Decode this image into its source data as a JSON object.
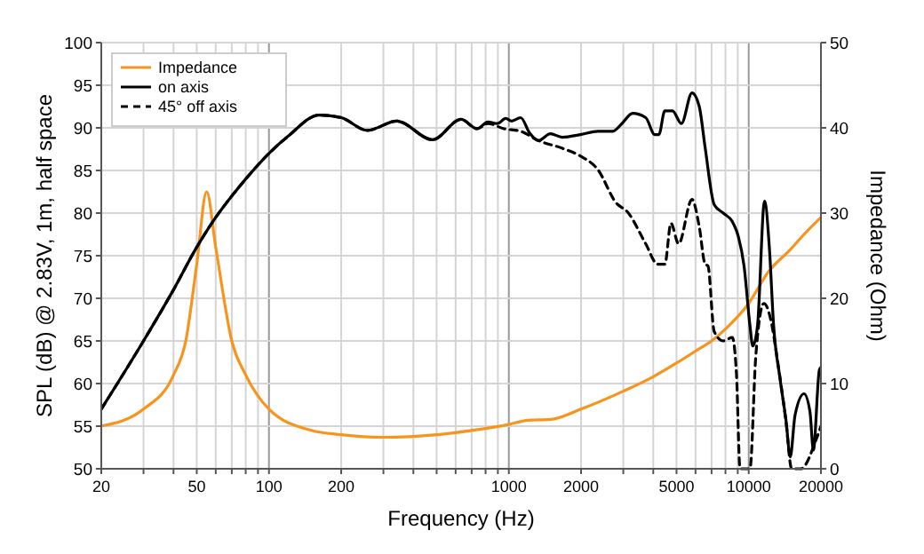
{
  "chart_data": {
    "type": "line",
    "xlabel": "Frequency (Hz)",
    "ylabel": "SPL (dB) @ 2.83V, 1m, half space",
    "y2label": "Impedance (Ohm)",
    "log": "x",
    "grid": true,
    "legend": "top left",
    "xlim": [
      20,
      20000
    ],
    "xticks": [
      20,
      {
        "value": 30,
        "label": null
      },
      {
        "value": 40,
        "label": null
      },
      50,
      {
        "value": 60,
        "label": null
      },
      {
        "value": 70,
        "label": null
      },
      {
        "value": 80,
        "label": null
      },
      {
        "value": 90,
        "label": null
      },
      100,
      200,
      {
        "value": 300,
        "label": null
      },
      {
        "value": 400,
        "label": null
      },
      {
        "value": 500,
        "label": null
      },
      {
        "value": 600,
        "label": null
      },
      {
        "value": 700,
        "label": null
      },
      {
        "value": 800,
        "label": null
      },
      {
        "value": 900,
        "label": null
      },
      1000,
      2000,
      {
        "value": 3000,
        "label": null
      },
      {
        "value": 4000,
        "label": null
      },
      5000,
      {
        "value": 6000,
        "label": null
      },
      {
        "value": 7000,
        "label": null
      },
      {
        "value": 8000,
        "label": null
      },
      {
        "value": 9000,
        "label": null
      },
      10000,
      20000
    ],
    "ylim": [
      50,
      100
    ],
    "yticks": [
      50,
      55,
      60,
      65,
      70,
      75,
      80,
      85,
      90,
      95,
      100
    ],
    "y2lim": [
      0,
      50
    ],
    "y2ticks": [
      0,
      10,
      20,
      30,
      40,
      50
    ],
    "series": [
      {
        "name": "Impedance",
        "color": "#f7941d",
        "axis": "y2",
        "x": [
          20,
          30,
          40,
          45,
          50,
          55,
          60,
          70,
          80,
          100,
          150,
          200,
          300,
          500,
          700,
          1000,
          1200,
          1500,
          2000,
          3000,
          4000,
          5000,
          6000,
          7000,
          8000,
          10000,
          12000,
          15000,
          17000,
          20000
        ],
        "values": [
          5,
          7,
          11,
          15,
          24,
          32.5,
          26,
          15,
          11,
          7,
          4.5,
          4,
          3.7,
          4,
          4.5,
          5.2,
          5.7,
          5.8,
          7,
          9.1,
          10.8,
          12.4,
          13.8,
          15,
          16.4,
          19.4,
          23,
          25.8,
          27.5,
          29.5
        ]
      },
      {
        "name": "on axis",
        "color": "#000000",
        "line_style": "solid",
        "x": [
          20,
          30,
          40,
          50,
          60,
          70,
          80,
          100,
          120,
          162,
          200,
          257,
          341,
          481,
          632,
          738,
          818,
          895,
          971,
          1028,
          1120,
          1221,
          1330,
          1490,
          1672,
          1984,
          2350,
          2716,
          2960,
          3280,
          3720,
          4060,
          4220,
          4470,
          4810,
          5240,
          5800,
          6220,
          6580,
          7180,
          7830,
          8540,
          9040,
          9560,
          10120,
          10400,
          10880,
          11640,
          12200,
          12700,
          13500,
          14300,
          14900,
          15600,
          17000,
          18000,
          18600,
          19700,
          20000
        ],
        "values": [
          57,
          65,
          71,
          76,
          79.5,
          82,
          84,
          87,
          89,
          91.5,
          91.2,
          89.7,
          90.8,
          88.6,
          91,
          89.9,
          90.7,
          90.5,
          91.1,
          90.8,
          91.2,
          89.4,
          88.5,
          89.3,
          88.9,
          89.2,
          89.6,
          89.6,
          90.5,
          91.7,
          91.2,
          89.2,
          89.2,
          92,
          92,
          90.5,
          94.1,
          92.5,
          87.7,
          81,
          80,
          79,
          77.3,
          73.8,
          66.8,
          64.4,
          66.8,
          81.4,
          75.8,
          66.8,
          60.6,
          55.7,
          51.4,
          56.3,
          58.8,
          56.7,
          52.2,
          61.6,
          61.9
        ]
      },
      {
        "name": "45° off axis",
        "color": "#000000",
        "line_style": "dashed",
        "x": [
          20,
          30,
          40,
          50,
          60,
          70,
          80,
          100,
          120,
          162,
          200,
          257,
          341,
          481,
          632,
          738,
          818,
          954,
          1120,
          1330,
          1672,
          1984,
          2350,
          2800,
          3130,
          3720,
          4170,
          4470,
          4740,
          5100,
          5800,
          6220,
          6580,
          6760,
          7180,
          7830,
          8540,
          8890,
          9200,
          10120,
          10700,
          11560,
          12400,
          13100,
          14300,
          15100,
          16500,
          19200,
          20000
        ],
        "values": [
          57,
          65,
          71,
          76,
          79.5,
          82,
          84,
          87,
          89,
          91.5,
          91.2,
          89.7,
          90.8,
          88.6,
          91,
          89.9,
          90.5,
          89.9,
          89.6,
          88.5,
          87.6,
          86.7,
          85.1,
          81.2,
          80.1,
          76.4,
          74,
          74,
          78.8,
          76.4,
          81.6,
          78.4,
          74,
          73.8,
          66.1,
          65,
          65.4,
          61.1,
          50,
          50,
          63.2,
          69.4,
          67.3,
          63.2,
          55.5,
          50,
          50,
          53.6,
          55
        ]
      }
    ]
  }
}
